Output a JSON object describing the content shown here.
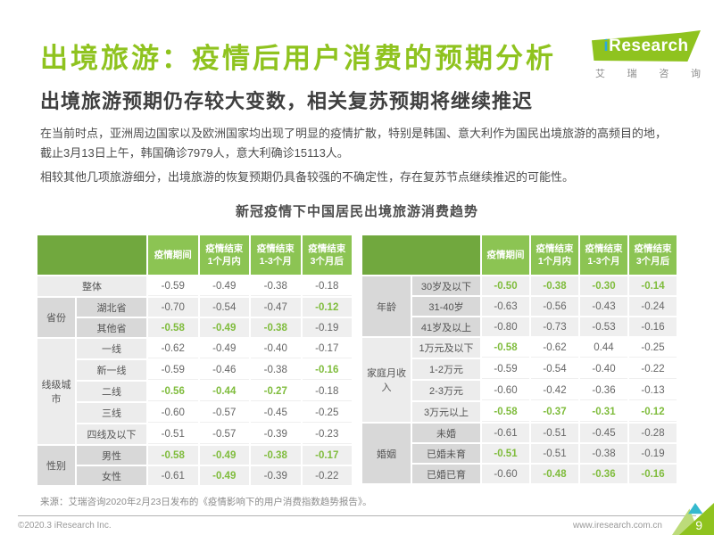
{
  "page": {
    "title": "出境旅游：疫情后用户消费的预期分析",
    "subtitle": "出境旅游预期仍存较大变数，相关复苏预期将继续推迟",
    "body_lines": [
      "在当前时点，亚洲周边国家以及欧洲国家均出现了明显的疫情扩散，特别是韩国、意大利作为国民出境旅游的高频目的地，",
      "截止3月13日上午，韩国确诊7979人，意大利确诊15113人。",
      "相较其他几项旅游细分，出境旅游的恢复预期仍具备较强的不确定性，存在复苏节点继续推迟的可能性。"
    ],
    "source_note": "来源：艾瑞咨询2020年2月23日发布的《疫情影响下的用户消费指数趋势报告》。",
    "footer": {
      "copyright": "©2020.3 iResearch Inc.",
      "website": "www.iresearch.com.cn",
      "page_number": "9"
    },
    "logo": {
      "brand_i": "i",
      "brand_rest": "Research",
      "brand_cn_chars": [
        "艾",
        "瑞",
        "咨",
        "询"
      ]
    }
  },
  "colors": {
    "brand_green": "#8FC31F",
    "header_green_light": "#8CC453",
    "header_green_dark": "#71A83E",
    "value_green_text": "#7FBC3C",
    "label_gray_dark": "#D8D8D8",
    "label_gray_light": "#ECECEC",
    "row_gray": "#EFEFEF",
    "text_dark": "#4D4D4D",
    "logo_blue": "#2BA9DF",
    "corner_cyan": "#35B9CE",
    "corner_light_green": "#BCDB7A"
  },
  "chart_data": {
    "type": "table",
    "title": "新冠疫情下中国居民出境旅游消费趋势",
    "column_headers": [
      [
        "疫情期间"
      ],
      [
        "疫情结束",
        "1个月内"
      ],
      [
        "疫情结束",
        "1-3个月"
      ],
      [
        "疫情结束",
        "3个月后"
      ]
    ],
    "tables": [
      {
        "side": "left",
        "groups": [
          {
            "category": "",
            "shade": "light",
            "rows": [
              {
                "label": "整体",
                "full": true,
                "values": [
                  "-0.59",
                  "-0.49",
                  "-0.38",
                  "-0.18"
                ],
                "green": []
              }
            ]
          },
          {
            "category": "省份",
            "shade": "dark",
            "rows": [
              {
                "label": "湖北省",
                "values": [
                  "-0.70",
                  "-0.54",
                  "-0.47",
                  "-0.12"
                ],
                "green": [
                  3
                ]
              },
              {
                "label": "其他省",
                "values": [
                  "-0.58",
                  "-0.49",
                  "-0.38",
                  "-0.19"
                ],
                "green": [
                  0,
                  1,
                  2
                ]
              }
            ]
          },
          {
            "category": "线级城市",
            "shade": "light",
            "rows": [
              {
                "label": "一线",
                "values": [
                  "-0.62",
                  "-0.49",
                  "-0.40",
                  "-0.17"
                ],
                "green": []
              },
              {
                "label": "新一线",
                "values": [
                  "-0.59",
                  "-0.46",
                  "-0.38",
                  "-0.16"
                ],
                "green": [
                  3
                ]
              },
              {
                "label": "二线",
                "values": [
                  "-0.56",
                  "-0.44",
                  "-0.27",
                  "-0.18"
                ],
                "green": [
                  0,
                  1,
                  2
                ]
              },
              {
                "label": "三线",
                "values": [
                  "-0.60",
                  "-0.57",
                  "-0.45",
                  "-0.25"
                ],
                "green": []
              },
              {
                "label": "四线及以下",
                "values": [
                  "-0.51",
                  "-0.57",
                  "-0.39",
                  "-0.23"
                ],
                "green": []
              }
            ]
          },
          {
            "category": "性别",
            "shade": "dark",
            "rows": [
              {
                "label": "男性",
                "values": [
                  "-0.58",
                  "-0.49",
                  "-0.38",
                  "-0.17"
                ],
                "green": [
                  0,
                  1,
                  2,
                  3
                ]
              },
              {
                "label": "女性",
                "values": [
                  "-0.61",
                  "-0.49",
                  "-0.39",
                  "-0.22"
                ],
                "green": [
                  1
                ]
              }
            ]
          }
        ]
      },
      {
        "side": "right",
        "groups": [
          {
            "category": "年龄",
            "shade": "dark",
            "rows": [
              {
                "label": "30岁及以下",
                "values": [
                  "-0.50",
                  "-0.38",
                  "-0.30",
                  "-0.14"
                ],
                "green": [
                  0,
                  1,
                  2,
                  3
                ]
              },
              {
                "label": "31-40岁",
                "values": [
                  "-0.63",
                  "-0.56",
                  "-0.43",
                  "-0.24"
                ],
                "green": []
              },
              {
                "label": "41岁及以上",
                "values": [
                  "-0.80",
                  "-0.73",
                  "-0.53",
                  "-0.16"
                ],
                "green": []
              }
            ]
          },
          {
            "category": "家庭月收入",
            "shade": "light",
            "rows": [
              {
                "label": "1万元及以下",
                "values": [
                  "-0.58",
                  "-0.62",
                  "0.44",
                  "-0.25"
                ],
                "green": [
                  0
                ]
              },
              {
                "label": "1-2万元",
                "values": [
                  "-0.59",
                  "-0.54",
                  "-0.40",
                  "-0.22"
                ],
                "green": []
              },
              {
                "label": "2-3万元",
                "values": [
                  "-0.60",
                  "-0.42",
                  "-0.36",
                  "-0.13"
                ],
                "green": []
              },
              {
                "label": "3万元以上",
                "values": [
                  "-0.58",
                  "-0.37",
                  "-0.31",
                  "-0.12"
                ],
                "green": [
                  0,
                  1,
                  2,
                  3
                ]
              }
            ]
          },
          {
            "category": "婚姻",
            "shade": "dark",
            "rows": [
              {
                "label": "未婚",
                "values": [
                  "-0.61",
                  "-0.51",
                  "-0.45",
                  "-0.28"
                ],
                "green": []
              },
              {
                "label": "已婚未育",
                "values": [
                  "-0.51",
                  "-0.51",
                  "-0.38",
                  "-0.19"
                ],
                "green": [
                  0
                ]
              },
              {
                "label": "已婚已育",
                "values": [
                  "-0.60",
                  "-0.48",
                  "-0.36",
                  "-0.16"
                ],
                "green": [
                  1,
                  2,
                  3
                ]
              }
            ]
          }
        ]
      }
    ]
  }
}
